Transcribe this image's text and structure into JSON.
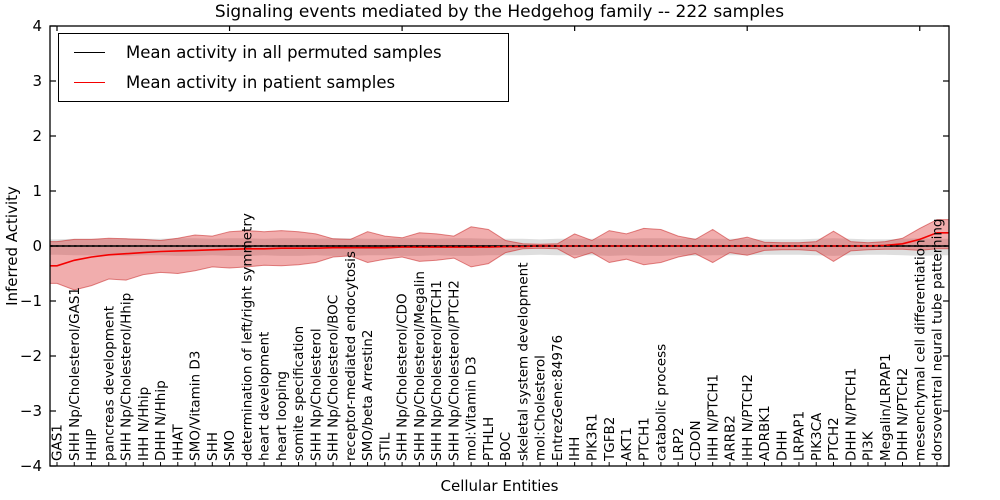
{
  "chart_data": {
    "type": "line",
    "title": "Signaling events mediated by the Hedgehog family -- 222 samples",
    "xlabel": "Cellular Entities",
    "ylabel": "Inferred Activity",
    "ylim": [
      -4,
      4
    ],
    "yticks": [
      -4,
      -3,
      -2,
      -1,
      0,
      1,
      2,
      3,
      4
    ],
    "grid": false,
    "legend_position": "upper left",
    "legend": [
      "Mean activity in all permuted samples",
      "Mean activity in patient samples"
    ],
    "colors": {
      "permuted_line": "#000000",
      "patient_line": "#f40000",
      "patient_band_fill": "rgba(220,50,50,0.40)",
      "patient_band_edge": "rgba(200,40,40,0.55)",
      "permuted_band_fill": "rgba(0,0,0,0.13)"
    },
    "categories": [
      "GAS1",
      "SHH Np/Cholesterol/GAS1",
      "HHIP",
      "pancreas development",
      "SHH Np/Cholesterol/Hhip",
      "IHH N/Hhip",
      "DHH N/Hhip",
      "HHAT",
      "SMO/Vitamin D3",
      "SHH",
      "SMO",
      "determination of left/right symmetry",
      "heart development",
      "heart looping",
      "somite specification",
      "SHH Np/Cholesterol",
      "SHH Np/Cholesterol/BOC",
      "receptor-mediated endocytosis",
      "SMO/beta Arrestin2",
      "STIL",
      "SHH Np/Cholesterol/CDO",
      "SHH Np/Cholesterol/Megalin",
      "SHH Np/Cholesterol/PTCH1",
      "SHH Np/Cholesterol/PTCH2",
      "mol:Vitamin D3",
      "PTHLH",
      "BOC",
      "skeletal system development",
      "mol:Cholesterol",
      "EntrezGene:84976",
      "IHH",
      "PIK3R1",
      "TGFB2",
      "AKT1",
      "PTCH1",
      "catabolic process",
      "LRP2",
      "CDON",
      "IHH N/PTCH1",
      "ARRB2",
      "IHH N/PTCH2",
      "ADRBK1",
      "DHH",
      "LRPAP1",
      "PIK3CA",
      "PTCH2",
      "DHH N/PTCH1",
      "PI3K",
      "Megalin/LRPAP1",
      "DHH N/PTCH2",
      "mesenchymal cell differentiation",
      "dorsoventral neural tube patterning"
    ],
    "series": [
      {
        "name": "Mean activity in all permuted samples",
        "values": [
          0,
          0,
          0,
          0,
          0,
          0,
          0,
          0,
          0,
          0,
          0,
          0,
          0,
          0,
          0,
          0,
          0,
          0,
          0,
          0,
          0,
          0,
          0,
          0,
          0,
          0,
          0,
          0,
          0,
          0,
          0,
          0,
          0,
          0,
          0,
          0,
          0,
          0,
          0,
          0,
          0,
          0,
          0,
          0,
          0,
          0,
          0,
          0,
          0,
          0,
          0,
          0
        ]
      },
      {
        "name": "Mean activity in patient samples",
        "values": [
          -0.36,
          -0.26,
          -0.2,
          -0.16,
          -0.14,
          -0.12,
          -0.1,
          -0.09,
          -0.08,
          -0.07,
          -0.06,
          -0.05,
          -0.05,
          -0.04,
          -0.04,
          -0.04,
          -0.03,
          -0.03,
          -0.03,
          -0.03,
          -0.02,
          -0.02,
          -0.02,
          -0.02,
          -0.02,
          -0.02,
          -0.01,
          -0.01,
          0,
          0,
          0,
          0,
          0,
          0,
          0,
          0,
          0,
          0,
          0,
          0,
          0,
          0,
          0,
          0,
          0,
          0,
          0,
          0,
          0.01,
          0.04,
          0.12,
          0.24
        ]
      },
      {
        "name": "Patient band upper",
        "values": [
          0.08,
          0.12,
          0.12,
          0.14,
          0.13,
          0.12,
          0.1,
          0.14,
          0.2,
          0.18,
          0.26,
          0.28,
          0.26,
          0.28,
          0.26,
          0.22,
          0.13,
          0.12,
          0.26,
          0.18,
          0.15,
          0.24,
          0.22,
          0.18,
          0.35,
          0.3,
          0.1,
          0.04,
          0.03,
          0.04,
          0.22,
          0.1,
          0.28,
          0.22,
          0.32,
          0.3,
          0.18,
          0.12,
          0.3,
          0.1,
          0.16,
          0.07,
          0.06,
          0.06,
          0.08,
          0.27,
          0.08,
          0.06,
          0.08,
          0.14,
          0.32,
          0.48
        ]
      },
      {
        "name": "Patient band lower",
        "values": [
          -0.68,
          -0.8,
          -0.72,
          -0.6,
          -0.62,
          -0.52,
          -0.48,
          -0.5,
          -0.45,
          -0.38,
          -0.4,
          -0.38,
          -0.35,
          -0.36,
          -0.34,
          -0.3,
          -0.2,
          -0.18,
          -0.3,
          -0.24,
          -0.2,
          -0.28,
          -0.26,
          -0.22,
          -0.38,
          -0.32,
          -0.12,
          -0.05,
          -0.04,
          -0.05,
          -0.22,
          -0.12,
          -0.3,
          -0.24,
          -0.34,
          -0.3,
          -0.2,
          -0.14,
          -0.3,
          -0.12,
          -0.17,
          -0.08,
          -0.07,
          -0.07,
          -0.09,
          -0.28,
          -0.09,
          -0.07,
          -0.06,
          -0.06,
          -0.08,
          -0.05
        ]
      },
      {
        "name": "Permuted band upper",
        "values": [
          0.12,
          0.13,
          0.13,
          0.13,
          0.14,
          0.13,
          0.13,
          0.14,
          0.14,
          0.13,
          0.14,
          0.14,
          0.13,
          0.14,
          0.14,
          0.13,
          0.14,
          0.14,
          0.13,
          0.13,
          0.14,
          0.14,
          0.13,
          0.14,
          0.14,
          0.13,
          0.13,
          0.13,
          0.12,
          0.13,
          0.13,
          0.13,
          0.14,
          0.13,
          0.14,
          0.14,
          0.13,
          0.14,
          0.13,
          0.13,
          0.13,
          0.12,
          0.12,
          0.12,
          0.13,
          0.14,
          0.13,
          0.12,
          0.12,
          0.13,
          0.14,
          0.13
        ]
      },
      {
        "name": "Permuted band lower",
        "values": [
          -0.16,
          -0.17,
          -0.17,
          -0.17,
          -0.18,
          -0.17,
          -0.17,
          -0.18,
          -0.18,
          -0.17,
          -0.18,
          -0.18,
          -0.17,
          -0.18,
          -0.18,
          -0.17,
          -0.18,
          -0.18,
          -0.17,
          -0.17,
          -0.18,
          -0.18,
          -0.17,
          -0.18,
          -0.18,
          -0.17,
          -0.17,
          -0.17,
          -0.16,
          -0.17,
          -0.17,
          -0.17,
          -0.18,
          -0.17,
          -0.18,
          -0.18,
          -0.17,
          -0.18,
          -0.17,
          -0.17,
          -0.17,
          -0.16,
          -0.16,
          -0.16,
          -0.17,
          -0.18,
          -0.17,
          -0.16,
          -0.16,
          -0.17,
          -0.18,
          -0.17
        ]
      }
    ]
  }
}
